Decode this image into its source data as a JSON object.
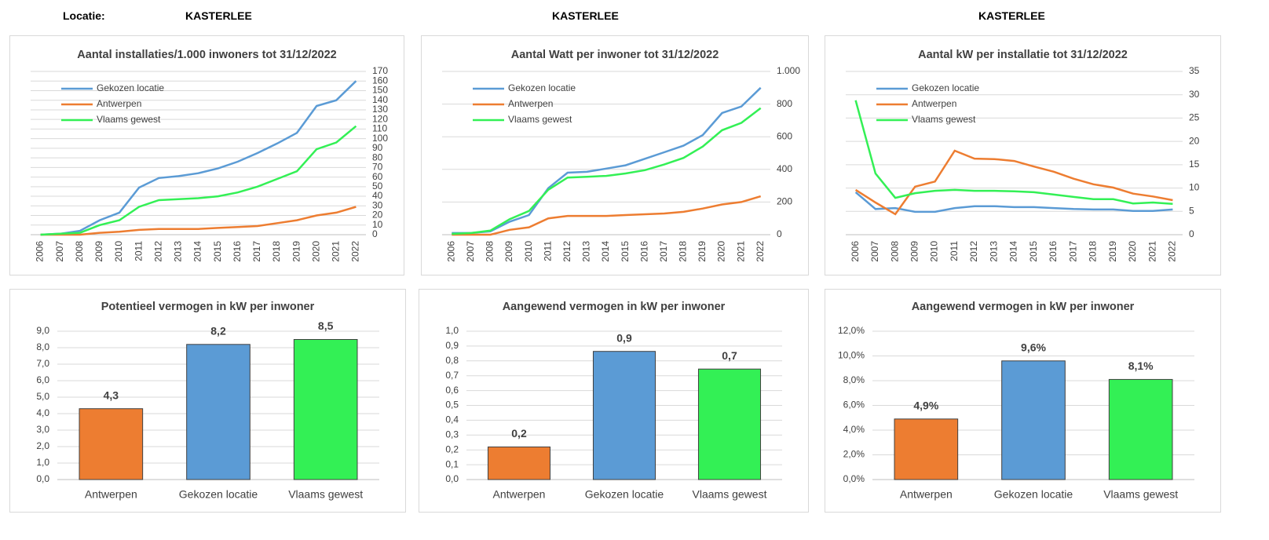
{
  "header": {
    "label": "Locatie:",
    "locations": [
      "KASTERLEE",
      "KASTERLEE",
      "KASTERLEE"
    ]
  },
  "chart_data": [
    {
      "type": "line",
      "title": "Aantal installaties/1.000  inwoners tot 31/12/2022",
      "categories": [
        "2006",
        "2007",
        "2008",
        "2009",
        "2010",
        "2011",
        "2012",
        "2013",
        "2014",
        "2015",
        "2016",
        "2017",
        "2018",
        "2019",
        "2020",
        "2021",
        "2022"
      ],
      "series": [
        {
          "name": "Gekozen locatie",
          "color": "#5b9bd5",
          "values": [
            0,
            1,
            4,
            15,
            23,
            49,
            59,
            61,
            64,
            69,
            76,
            85,
            95,
            106,
            134,
            140,
            160
          ]
        },
        {
          "name": "Antwerpen",
          "color": "#ed7d31",
          "values": [
            0,
            0,
            0,
            2,
            3,
            5,
            6,
            6,
            6,
            7,
            8,
            9,
            12,
            15,
            20,
            23,
            29
          ]
        },
        {
          "name": "Vlaams gewest",
          "color": "#33f055",
          "values": [
            0,
            1,
            2,
            10,
            15,
            29,
            36,
            37,
            38,
            40,
            44,
            50,
            58,
            66,
            89,
            96,
            113
          ]
        }
      ],
      "ylim": [
        0,
        170
      ],
      "yticks": [
        0,
        10,
        20,
        30,
        40,
        50,
        60,
        70,
        80,
        90,
        100,
        110,
        120,
        130,
        140,
        150,
        160,
        170
      ],
      "grid": true,
      "legend": "upper left"
    },
    {
      "type": "line",
      "title": "Aantal Watt per inwoner tot 31/12/2022",
      "categories": [
        "2006",
        "2007",
        "2008",
        "2009",
        "2010",
        "2011",
        "2012",
        "2013",
        "2014",
        "2015",
        "2016",
        "2017",
        "2018",
        "2019",
        "2020",
        "2021",
        "2022"
      ],
      "series": [
        {
          "name": "Gekozen locatie",
          "color": "#5b9bd5",
          "values": [
            10,
            10,
            20,
            80,
            120,
            285,
            380,
            385,
            405,
            425,
            465,
            505,
            545,
            610,
            745,
            785,
            900
          ]
        },
        {
          "name": "Antwerpen",
          "color": "#ed7d31",
          "values": [
            0,
            0,
            0,
            30,
            45,
            100,
            115,
            115,
            115,
            120,
            125,
            130,
            140,
            160,
            185,
            200,
            235
          ]
        },
        {
          "name": "Vlaams gewest",
          "color": "#33f055",
          "values": [
            5,
            10,
            25,
            95,
            145,
            275,
            350,
            355,
            360,
            375,
            395,
            430,
            470,
            540,
            640,
            685,
            775
          ]
        }
      ],
      "ylim": [
        0,
        1000
      ],
      "yticks": [
        0,
        200,
        400,
        600,
        800,
        {
          "value": 1000,
          "label": "1.000"
        }
      ],
      "grid": true,
      "legend": "upper left"
    },
    {
      "type": "line",
      "title": "Aantal kW per installatie  tot 31/12/2022",
      "categories": [
        "2006",
        "2007",
        "2008",
        "2009",
        "2010",
        "2011",
        "2012",
        "2013",
        "2014",
        "2015",
        "2016",
        "2017",
        "2018",
        "2019",
        "2020",
        "2021",
        "2022"
      ],
      "series": [
        {
          "name": "Gekozen locatie",
          "color": "#5b9bd5",
          "values": [
            9.1,
            5.5,
            5.7,
            4.9,
            4.9,
            5.7,
            6.1,
            6.1,
            5.9,
            5.9,
            5.7,
            5.5,
            5.4,
            5.4,
            5.1,
            5.1,
            5.4
          ]
        },
        {
          "name": "Antwerpen",
          "color": "#ed7d31",
          "values": [
            9.6,
            6.9,
            4.4,
            10.3,
            11.4,
            18,
            16.3,
            16.2,
            15.8,
            14.6,
            13.5,
            12,
            10.8,
            10.1,
            8.8,
            8.2,
            7.4
          ]
        },
        {
          "name": "Vlaams gewest",
          "color": "#33f055",
          "values": [
            28.8,
            13.1,
            7.9,
            8.9,
            9.4,
            9.6,
            9.4,
            9.4,
            9.3,
            9.1,
            8.6,
            8.1,
            7.6,
            7.6,
            6.7,
            6.9,
            6.6
          ]
        }
      ],
      "ylim": [
        0,
        35
      ],
      "yticks": [
        0,
        5,
        10,
        15,
        20,
        25,
        30,
        35
      ],
      "grid": true,
      "legend": "upper left"
    },
    {
      "type": "bar",
      "title": "Potentieel vermogen in kW per inwoner",
      "categories": [
        "Antwerpen",
        "Gekozen locatie",
        "Vlaams gewest"
      ],
      "values": [
        4.3,
        8.2,
        8.5
      ],
      "value_labels": [
        "4,3",
        "8,2",
        "8,5"
      ],
      "colors": [
        "#ed7d31",
        "#5b9bd5",
        "#33f055"
      ],
      "ylim": [
        0,
        9
      ],
      "yticks": [
        {
          "value": 0,
          "label": "0,0"
        },
        {
          "value": 1,
          "label": "1,0"
        },
        {
          "value": 2,
          "label": "2,0"
        },
        {
          "value": 3,
          "label": "3,0"
        },
        {
          "value": 4,
          "label": "4,0"
        },
        {
          "value": 5,
          "label": "5,0"
        },
        {
          "value": 6,
          "label": "6,0"
        },
        {
          "value": 7,
          "label": "7,0"
        },
        {
          "value": 8,
          "label": "8,0"
        },
        {
          "value": 9,
          "label": "9,0"
        }
      ],
      "grid": true
    },
    {
      "type": "bar",
      "title": "Aangewend vermogen in kW per inwoner",
      "categories": [
        "Antwerpen",
        "Gekozen locatie",
        "Vlaams gewest"
      ],
      "values": [
        0.22,
        0.864,
        0.745
      ],
      "value_labels": [
        "0,2",
        "0,9",
        "0,7"
      ],
      "colors": [
        "#ed7d31",
        "#5b9bd5",
        "#33f055"
      ],
      "ylim": [
        0,
        1
      ],
      "yticks": [
        {
          "value": 0,
          "label": "0,0"
        },
        {
          "value": 0.1,
          "label": "0,1"
        },
        {
          "value": 0.2,
          "label": "0,2"
        },
        {
          "value": 0.3,
          "label": "0,3"
        },
        {
          "value": 0.4,
          "label": "0,4"
        },
        {
          "value": 0.5,
          "label": "0,5"
        },
        {
          "value": 0.6,
          "label": "0,6"
        },
        {
          "value": 0.7,
          "label": "0,7"
        },
        {
          "value": 0.8,
          "label": "0,8"
        },
        {
          "value": 0.9,
          "label": "0,9"
        },
        {
          "value": 1,
          "label": "1,0"
        }
      ],
      "grid": true
    },
    {
      "type": "bar",
      "title": "Aangewend vermogen in kW per inwoner",
      "categories": [
        "Antwerpen",
        "Gekozen locatie",
        "Vlaams gewest"
      ],
      "values": [
        4.9,
        9.6,
        8.1
      ],
      "value_labels": [
        "4,9%",
        "9,6%",
        "8,1%"
      ],
      "colors": [
        "#ed7d31",
        "#5b9bd5",
        "#33f055"
      ],
      "ylim": [
        0,
        12
      ],
      "yticks": [
        {
          "value": 0,
          "label": "0,0%"
        },
        {
          "value": 2,
          "label": "2,0%"
        },
        {
          "value": 4,
          "label": "4,0%"
        },
        {
          "value": 6,
          "label": "6,0%"
        },
        {
          "value": 8,
          "label": "8,0%"
        },
        {
          "value": 10,
          "label": "10,0%"
        },
        {
          "value": 12,
          "label": "12,0%"
        }
      ],
      "grid": true
    }
  ]
}
